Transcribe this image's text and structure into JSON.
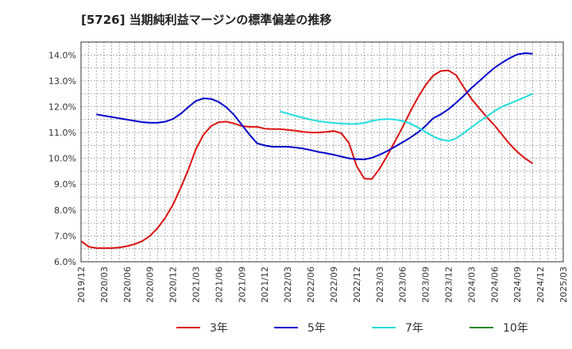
{
  "chart_data": {
    "type": "line",
    "title": "[5726]  当期純利益マージンの標準偏差の推移",
    "xlabel": "",
    "ylabel": "",
    "ylim": [
      6.0,
      14.5
    ],
    "y_ticks": [
      "6.0%",
      "7.0%",
      "8.0%",
      "9.0%",
      "10.0%",
      "11.0%",
      "12.0%",
      "13.0%",
      "14.0%"
    ],
    "y_tick_values": [
      6,
      7,
      8,
      9,
      10,
      11,
      12,
      13,
      14
    ],
    "x_range": [
      "2019/12",
      "2025/03"
    ],
    "x_ticks": [
      "2019/12",
      "2020/03",
      "2020/06",
      "2020/09",
      "2020/12",
      "2021/03",
      "2021/06",
      "2021/09",
      "2021/12",
      "2022/03",
      "2022/06",
      "2022/09",
      "2022/12",
      "2023/03",
      "2023/06",
      "2023/09",
      "2023/12",
      "2024/03",
      "2024/06",
      "2024/09",
      "2024/12",
      "2025/03"
    ],
    "grid": true,
    "legend": "bottom",
    "series": [
      {
        "name": "3年",
        "color": "#dd1111",
        "points": [
          [
            "2019/12",
            6.8
          ],
          [
            "2020/01",
            6.58
          ],
          [
            "2020/02",
            6.53
          ],
          [
            "2020/03",
            6.53
          ],
          [
            "2020/04",
            6.53
          ],
          [
            "2020/05",
            6.55
          ],
          [
            "2020/06",
            6.6
          ],
          [
            "2020/07",
            6.68
          ],
          [
            "2020/08",
            6.8
          ],
          [
            "2020/09",
            7.0
          ],
          [
            "2020/10",
            7.3
          ],
          [
            "2020/11",
            7.7
          ],
          [
            "2020/12",
            8.2
          ],
          [
            "2021/01",
            8.85
          ],
          [
            "2021/02",
            9.55
          ],
          [
            "2021/03",
            10.35
          ],
          [
            "2021/04",
            10.92
          ],
          [
            "2021/05",
            11.25
          ],
          [
            "2021/06",
            11.4
          ],
          [
            "2021/07",
            11.42
          ],
          [
            "2021/08",
            11.35
          ],
          [
            "2021/09",
            11.25
          ],
          [
            "2021/10",
            11.22
          ],
          [
            "2021/11",
            11.22
          ],
          [
            "2021/12",
            11.15
          ],
          [
            "2022/01",
            11.13
          ],
          [
            "2022/02",
            11.13
          ],
          [
            "2022/03",
            11.1
          ],
          [
            "2022/04",
            11.07
          ],
          [
            "2022/05",
            11.03
          ],
          [
            "2022/06",
            11.0
          ],
          [
            "2022/07",
            11.0
          ],
          [
            "2022/08",
            11.02
          ],
          [
            "2022/09",
            11.06
          ],
          [
            "2022/10",
            10.97
          ],
          [
            "2022/11",
            10.6
          ],
          [
            "2022/12",
            9.7
          ],
          [
            "2023/01",
            9.22
          ],
          [
            "2023/02",
            9.2
          ],
          [
            "2023/03",
            9.6
          ],
          [
            "2023/04",
            10.1
          ],
          [
            "2023/05",
            10.65
          ],
          [
            "2023/06",
            11.2
          ],
          [
            "2023/07",
            11.8
          ],
          [
            "2023/08",
            12.35
          ],
          [
            "2023/09",
            12.83
          ],
          [
            "2023/10",
            13.2
          ],
          [
            "2023/11",
            13.38
          ],
          [
            "2023/12",
            13.4
          ],
          [
            "2024/01",
            13.22
          ],
          [
            "2024/02",
            12.75
          ],
          [
            "2024/03",
            12.3
          ],
          [
            "2024/04",
            11.95
          ],
          [
            "2024/05",
            11.6
          ],
          [
            "2024/06",
            11.28
          ],
          [
            "2024/07",
            10.92
          ],
          [
            "2024/08",
            10.55
          ],
          [
            "2024/09",
            10.25
          ],
          [
            "2024/10",
            10.0
          ],
          [
            "2024/11",
            9.8
          ]
        ]
      },
      {
        "name": "5年",
        "color": "#0000cc",
        "points": [
          [
            "2020/02",
            11.7
          ],
          [
            "2020/03",
            11.65
          ],
          [
            "2020/04",
            11.6
          ],
          [
            "2020/05",
            11.55
          ],
          [
            "2020/06",
            11.5
          ],
          [
            "2020/07",
            11.45
          ],
          [
            "2020/08",
            11.4
          ],
          [
            "2020/09",
            11.38
          ],
          [
            "2020/10",
            11.38
          ],
          [
            "2020/11",
            11.42
          ],
          [
            "2020/12",
            11.52
          ],
          [
            "2021/01",
            11.72
          ],
          [
            "2021/02",
            11.98
          ],
          [
            "2021/03",
            12.22
          ],
          [
            "2021/04",
            12.32
          ],
          [
            "2021/05",
            12.3
          ],
          [
            "2021/06",
            12.18
          ],
          [
            "2021/07",
            11.97
          ],
          [
            "2021/08",
            11.68
          ],
          [
            "2021/09",
            11.3
          ],
          [
            "2021/10",
            10.92
          ],
          [
            "2021/11",
            10.58
          ],
          [
            "2021/12",
            10.5
          ],
          [
            "2022/01",
            10.45
          ],
          [
            "2022/02",
            10.45
          ],
          [
            "2022/03",
            10.45
          ],
          [
            "2022/04",
            10.42
          ],
          [
            "2022/05",
            10.38
          ],
          [
            "2022/06",
            10.32
          ],
          [
            "2022/07",
            10.25
          ],
          [
            "2022/08",
            10.2
          ],
          [
            "2022/09",
            10.14
          ],
          [
            "2022/10",
            10.07
          ],
          [
            "2022/11",
            10.0
          ],
          [
            "2022/12",
            9.97
          ],
          [
            "2023/01",
            9.96
          ],
          [
            "2023/02",
            10.02
          ],
          [
            "2023/03",
            10.14
          ],
          [
            "2023/04",
            10.28
          ],
          [
            "2023/05",
            10.45
          ],
          [
            "2023/06",
            10.62
          ],
          [
            "2023/07",
            10.8
          ],
          [
            "2023/08",
            11.0
          ],
          [
            "2023/09",
            11.25
          ],
          [
            "2023/10",
            11.55
          ],
          [
            "2023/11",
            11.7
          ],
          [
            "2023/12",
            11.9
          ],
          [
            "2024/01",
            12.15
          ],
          [
            "2024/02",
            12.42
          ],
          [
            "2024/03",
            12.72
          ],
          [
            "2024/04",
            12.98
          ],
          [
            "2024/05",
            13.25
          ],
          [
            "2024/06",
            13.5
          ],
          [
            "2024/07",
            13.7
          ],
          [
            "2024/08",
            13.88
          ],
          [
            "2024/09",
            14.02
          ],
          [
            "2024/10",
            14.07
          ],
          [
            "2024/11",
            14.05
          ]
        ]
      },
      {
        "name": "7年",
        "color": "#22dddd",
        "points": [
          [
            "2022/02",
            11.82
          ],
          [
            "2022/03",
            11.73
          ],
          [
            "2022/04",
            11.65
          ],
          [
            "2022/05",
            11.57
          ],
          [
            "2022/06",
            11.5
          ],
          [
            "2022/07",
            11.44
          ],
          [
            "2022/08",
            11.4
          ],
          [
            "2022/09",
            11.37
          ],
          [
            "2022/10",
            11.35
          ],
          [
            "2022/11",
            11.33
          ],
          [
            "2022/12",
            11.33
          ],
          [
            "2023/01",
            11.37
          ],
          [
            "2023/02",
            11.45
          ],
          [
            "2023/03",
            11.5
          ],
          [
            "2023/04",
            11.52
          ],
          [
            "2023/05",
            11.5
          ],
          [
            "2023/06",
            11.45
          ],
          [
            "2023/07",
            11.35
          ],
          [
            "2023/08",
            11.2
          ],
          [
            "2023/09",
            11.02
          ],
          [
            "2023/10",
            10.85
          ],
          [
            "2023/11",
            10.73
          ],
          [
            "2023/12",
            10.67
          ],
          [
            "2024/01",
            10.77
          ],
          [
            "2024/02",
            10.98
          ],
          [
            "2024/03",
            11.2
          ],
          [
            "2024/04",
            11.42
          ],
          [
            "2024/05",
            11.62
          ],
          [
            "2024/06",
            11.83
          ],
          [
            "2024/07",
            12.0
          ],
          [
            "2024/08",
            12.12
          ],
          [
            "2024/09",
            12.24
          ],
          [
            "2024/10",
            12.37
          ],
          [
            "2024/11",
            12.5
          ]
        ]
      },
      {
        "name": "10年",
        "color": "#228b22",
        "points": []
      }
    ]
  }
}
